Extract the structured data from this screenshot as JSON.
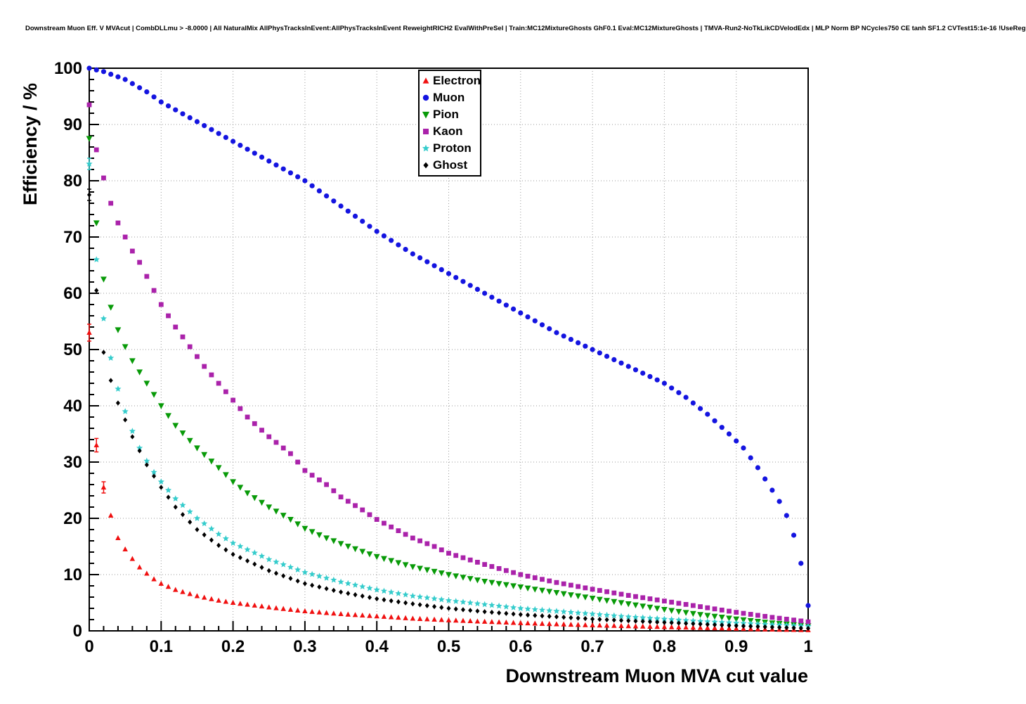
{
  "chart_data": {
    "type": "scatter",
    "title": "Downstream Muon Eff. V MVAcut | CombDLLmu > -8.0000 | All NaturalMix AllPhysTracksInEvent:AllPhysTracksInEvent ReweightRICH2 EvalWithPreSel | Train:MC12MixtureGhosts GhF0.1 Eval:MC12MixtureGhosts | TMVA-Run2-NoTkLikCDVelodEdx | MLP Norm BP NCycles750 CE tanh SF1.2 CVTest15:1e-16 !UseReg",
    "xlabel": "Downstream Muon MVA cut value",
    "ylabel": "Efficiency / %",
    "xlim": [
      0,
      1
    ],
    "ylim": [
      0,
      100
    ],
    "x_major": 0.1,
    "x_minor": 0.02,
    "y_major": 10,
    "y_minor": 2,
    "grid": true,
    "legend_position": "top-center",
    "marker_step": 0.01,
    "series": [
      {
        "name": "Electron",
        "color": "#f01010",
        "marker": "triangle-up",
        "size": 3.4,
        "points": [
          [
            0,
            53,
            1.5
          ],
          [
            0.01,
            33,
            1.2
          ],
          [
            0.02,
            25.5,
            1
          ],
          [
            0.03,
            20.5
          ],
          [
            0.04,
            16.5
          ],
          [
            0.05,
            14.5
          ],
          [
            0.06,
            12.8
          ],
          [
            0.07,
            11.3
          ],
          [
            0.08,
            10.2
          ],
          [
            0.09,
            9.2
          ],
          [
            0.1,
            8.4
          ],
          [
            0.12,
            7.3
          ],
          [
            0.15,
            6.2
          ],
          [
            0.18,
            5.4
          ],
          [
            0.2,
            5.0
          ],
          [
            0.25,
            4.2
          ],
          [
            0.3,
            3.5
          ],
          [
            0.35,
            3.0
          ],
          [
            0.4,
            2.6
          ],
          [
            0.45,
            2.2
          ],
          [
            0.5,
            1.9
          ],
          [
            0.55,
            1.65
          ],
          [
            0.6,
            1.4
          ],
          [
            0.65,
            1.2
          ],
          [
            0.7,
            1.0
          ],
          [
            0.75,
            0.85
          ],
          [
            0.8,
            0.7
          ],
          [
            0.85,
            0.55
          ],
          [
            0.9,
            0.4
          ],
          [
            0.95,
            0.25
          ],
          [
            1,
            0.15
          ]
        ]
      },
      {
        "name": "Muon",
        "color": "#1414e0",
        "marker": "circle",
        "size": 3.6,
        "points": [
          [
            0,
            100
          ],
          [
            0.02,
            99.4
          ],
          [
            0.05,
            98
          ],
          [
            0.08,
            95.8
          ],
          [
            0.1,
            94
          ],
          [
            0.15,
            90.5
          ],
          [
            0.2,
            87
          ],
          [
            0.25,
            83.5
          ],
          [
            0.3,
            80
          ],
          [
            0.35,
            75.5
          ],
          [
            0.4,
            71
          ],
          [
            0.45,
            67
          ],
          [
            0.5,
            63.5
          ],
          [
            0.55,
            60
          ],
          [
            0.6,
            56.5
          ],
          [
            0.65,
            53
          ],
          [
            0.7,
            50
          ],
          [
            0.75,
            47
          ],
          [
            0.8,
            44
          ],
          [
            0.83,
            41.5
          ],
          [
            0.86,
            38.5
          ],
          [
            0.89,
            35
          ],
          [
            0.91,
            32.5
          ],
          [
            0.93,
            29
          ],
          [
            0.95,
            25
          ],
          [
            0.96,
            23
          ],
          [
            0.97,
            20.5
          ],
          [
            0.98,
            17
          ],
          [
            0.99,
            12
          ],
          [
            1,
            4.5
          ]
        ]
      },
      {
        "name": "Pion",
        "color": "#089a08",
        "marker": "triangle-down",
        "size": 4,
        "points": [
          [
            0,
            87.5
          ],
          [
            0.01,
            72.5
          ],
          [
            0.02,
            62.5
          ],
          [
            0.03,
            57.5
          ],
          [
            0.04,
            53.5
          ],
          [
            0.05,
            50.5
          ],
          [
            0.06,
            48
          ],
          [
            0.07,
            46
          ],
          [
            0.08,
            44
          ],
          [
            0.09,
            42
          ],
          [
            0.1,
            40
          ],
          [
            0.12,
            36.5
          ],
          [
            0.15,
            32.5
          ],
          [
            0.18,
            29
          ],
          [
            0.2,
            26.5
          ],
          [
            0.22,
            24.5
          ],
          [
            0.25,
            22
          ],
          [
            0.28,
            19.8
          ],
          [
            0.3,
            18.2
          ],
          [
            0.33,
            16.5
          ],
          [
            0.35,
            15.5
          ],
          [
            0.4,
            13.2
          ],
          [
            0.45,
            11.4
          ],
          [
            0.5,
            10
          ],
          [
            0.55,
            8.8
          ],
          [
            0.6,
            7.8
          ],
          [
            0.65,
            6.8
          ],
          [
            0.7,
            5.8
          ],
          [
            0.75,
            4.8
          ],
          [
            0.8,
            3.8
          ],
          [
            0.85,
            2.9
          ],
          [
            0.9,
            2.1
          ],
          [
            0.95,
            1.4
          ],
          [
            1,
            0.9
          ]
        ]
      },
      {
        "name": "Kaon",
        "color": "#aa22aa",
        "marker": "square",
        "size": 3.4,
        "points": [
          [
            0,
            93.5
          ],
          [
            0.01,
            85.5
          ],
          [
            0.02,
            80.5
          ],
          [
            0.03,
            76
          ],
          [
            0.04,
            72.5
          ],
          [
            0.05,
            70
          ],
          [
            0.06,
            67.5
          ],
          [
            0.07,
            65.5
          ],
          [
            0.08,
            63
          ],
          [
            0.09,
            60.5
          ],
          [
            0.1,
            58
          ],
          [
            0.12,
            54
          ],
          [
            0.14,
            50.5
          ],
          [
            0.16,
            47
          ],
          [
            0.18,
            44
          ],
          [
            0.2,
            41
          ],
          [
            0.22,
            38
          ],
          [
            0.25,
            34.5
          ],
          [
            0.28,
            31.5
          ],
          [
            0.3,
            28.5
          ],
          [
            0.33,
            26
          ],
          [
            0.35,
            23.8
          ],
          [
            0.38,
            21.5
          ],
          [
            0.4,
            19.8
          ],
          [
            0.43,
            17.8
          ],
          [
            0.45,
            16.5
          ],
          [
            0.48,
            15
          ],
          [
            0.5,
            13.8
          ],
          [
            0.55,
            11.8
          ],
          [
            0.6,
            10
          ],
          [
            0.65,
            8.6
          ],
          [
            0.7,
            7.4
          ],
          [
            0.75,
            6.3
          ],
          [
            0.8,
            5.3
          ],
          [
            0.85,
            4.3
          ],
          [
            0.9,
            3.3
          ],
          [
            0.95,
            2.4
          ],
          [
            1,
            1.6
          ]
        ]
      },
      {
        "name": "Proton",
        "color": "#35cccc",
        "marker": "star",
        "size": 4.8,
        "points": [
          [
            0,
            83,
            1
          ],
          [
            0.01,
            66
          ],
          [
            0.02,
            55.5
          ],
          [
            0.03,
            48.5
          ],
          [
            0.04,
            43
          ],
          [
            0.05,
            39
          ],
          [
            0.06,
            35.5
          ],
          [
            0.07,
            32.5
          ],
          [
            0.08,
            30.2
          ],
          [
            0.09,
            28.2
          ],
          [
            0.1,
            26.5
          ],
          [
            0.12,
            23.5
          ],
          [
            0.15,
            20
          ],
          [
            0.18,
            17.2
          ],
          [
            0.2,
            15.6
          ],
          [
            0.25,
            12.7
          ],
          [
            0.3,
            10.4
          ],
          [
            0.35,
            8.7
          ],
          [
            0.4,
            7.3
          ],
          [
            0.45,
            6.2
          ],
          [
            0.5,
            5.4
          ],
          [
            0.55,
            4.7
          ],
          [
            0.6,
            4.0
          ],
          [
            0.65,
            3.5
          ],
          [
            0.7,
            3.0
          ],
          [
            0.75,
            2.5
          ],
          [
            0.8,
            2.1
          ],
          [
            0.85,
            1.7
          ],
          [
            0.9,
            1.4
          ],
          [
            0.95,
            1.1
          ],
          [
            1,
            0.8
          ]
        ]
      },
      {
        "name": "Ghost",
        "color": "#000000",
        "marker": "diamond",
        "size": 3.2,
        "points": [
          [
            0,
            77.5,
            1
          ],
          [
            0.01,
            60.5
          ],
          [
            0.02,
            49.5
          ],
          [
            0.03,
            44.5
          ],
          [
            0.04,
            40.5
          ],
          [
            0.05,
            37.5
          ],
          [
            0.06,
            34.5
          ],
          [
            0.07,
            32
          ],
          [
            0.08,
            29.5
          ],
          [
            0.09,
            27.5
          ],
          [
            0.1,
            25.5
          ],
          [
            0.12,
            22
          ],
          [
            0.15,
            18
          ],
          [
            0.18,
            15.2
          ],
          [
            0.2,
            13.6
          ],
          [
            0.25,
            10.7
          ],
          [
            0.3,
            8.4
          ],
          [
            0.35,
            6.9
          ],
          [
            0.4,
            5.7
          ],
          [
            0.45,
            4.8
          ],
          [
            0.5,
            4.0
          ],
          [
            0.55,
            3.4
          ],
          [
            0.6,
            2.9
          ],
          [
            0.65,
            2.5
          ],
          [
            0.7,
            2.1
          ],
          [
            0.75,
            1.8
          ],
          [
            0.8,
            1.5
          ],
          [
            0.85,
            1.2
          ],
          [
            0.9,
            0.9
          ],
          [
            0.95,
            0.65
          ],
          [
            1,
            0.45
          ]
        ]
      }
    ],
    "grid_color": "#999999",
    "frame_color": "#000000"
  }
}
